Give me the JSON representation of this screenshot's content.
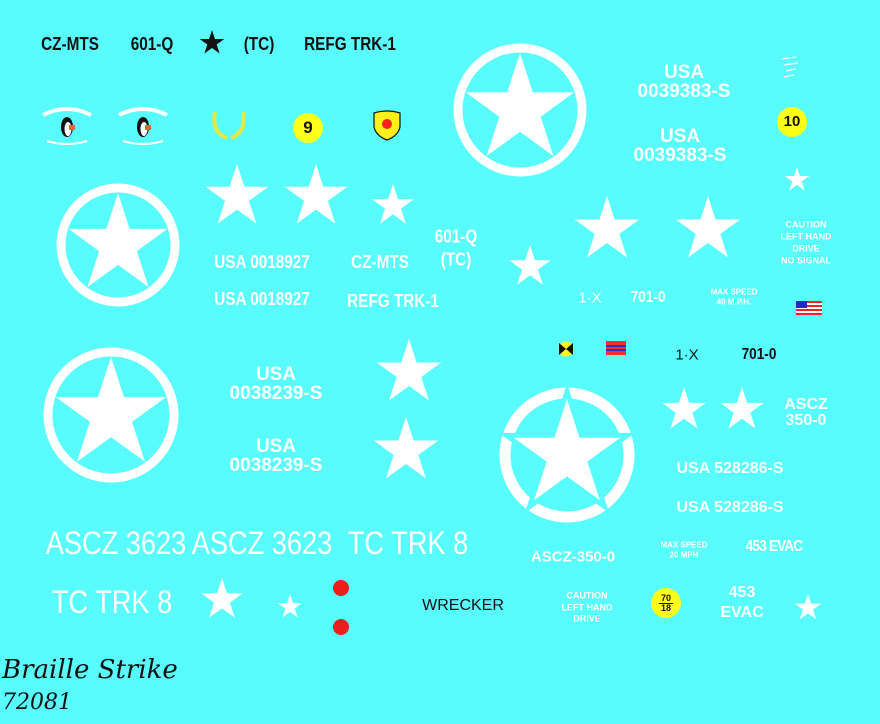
{
  "background_color": "#58fcfc",
  "top_row": {
    "cz_mts": "CZ-MTS",
    "code": "601-Q",
    "tc": "(TC)",
    "refg": "REFG TRK-1"
  },
  "logos": {
    "penguin_fleet": "The PENGUIN FLEET",
    "shield": "TC MTS",
    "marker_9": "9",
    "marker_10": "10"
  },
  "upper_right": {
    "usa1": "USA",
    "serial1": "0039383-S",
    "usa2": "USA",
    "serial2": "0039383-S"
  },
  "middle_left": {
    "serial_a": "USA 0018927",
    "serial_b": "USA 0018927",
    "cz_mts": "CZ-MTS",
    "refg": "REFG TRK-1",
    "code": "601-Q",
    "tc": "(TC)"
  },
  "caution_no_signal": [
    "CAUTION",
    "LEFT HAND",
    "DRIVE",
    "NO SIGNAL"
  ],
  "white_1x": "1·X",
  "white_701": "701-0",
  "max_speed_40": [
    "MAX SPEED",
    "40 M.P.H."
  ],
  "black_1x": "1·X",
  "black_701": "701-0",
  "lower_left": {
    "usa1": "USA",
    "serial1": "0038239-S",
    "usa2": "USA",
    "serial2": "0038239-S"
  },
  "ascz_350": [
    "ASCZ",
    "350-0"
  ],
  "usa_528_a": "USA 528286-S",
  "usa_528_b": "USA 528286-S",
  "ascz_350_dash": "ASCZ-350-0",
  "max_speed_20": [
    "MAX SPEED",
    "20 MPH"
  ],
  "evac_inline": "453 EVAC",
  "ascz_3623_a": "ASCZ 3623",
  "ascz_3623_b": "ASCZ 3623",
  "tc_trk_a": "TC TRK 8",
  "tc_trk_b": "TC TRK 8",
  "wrecker": "WRECKER",
  "caution_drive": [
    "CAUTION",
    "LEFT HAND",
    "DRIVE"
  ],
  "bridge_class": {
    "top": "70",
    "bottom": "18"
  },
  "evac_stack": [
    "453",
    "EVAC"
  ],
  "brand": "Braille Strike",
  "product_code": "72081"
}
